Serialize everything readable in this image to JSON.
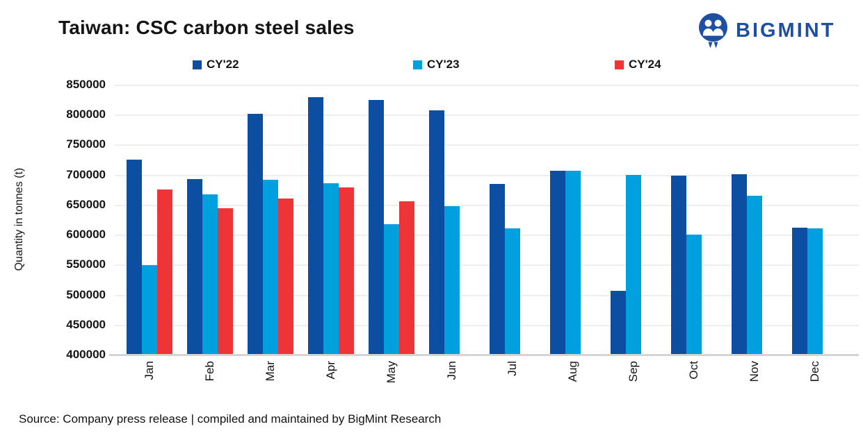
{
  "header": {
    "title": "Taiwan: CSC carbon steel sales",
    "logo_text": "BIGMINT"
  },
  "colors": {
    "cy22": "#0b4ea2",
    "cy23": "#00a0de",
    "cy24": "#ee3436",
    "logo_blue": "#1d4fa3",
    "gridline": "#eeeeee",
    "axis_line": "#d4d4d4",
    "text": "#141414"
  },
  "chart_data": {
    "type": "bar",
    "title": "Taiwan: CSC carbon steel sales",
    "xlabel": "",
    "ylabel": "Quantity in tonnes (t)",
    "ylim": [
      400000,
      850000
    ],
    "yticks": [
      850000,
      800000,
      750000,
      700000,
      650000,
      600000,
      550000,
      500000,
      450000,
      400000
    ],
    "grid": "horizontal",
    "legend_position": "top",
    "categories": [
      "Jan",
      "Feb",
      "Mar",
      "Apr",
      "May",
      "Jun",
      "Jul",
      "Aug",
      "Sep",
      "Oct",
      "Nov",
      "Dec"
    ],
    "series": [
      {
        "name": "CY'22",
        "color": "#0b4ea2",
        "values": [
          725000,
          693000,
          801000,
          829000,
          825000,
          807000,
          685000,
          707000,
          506000,
          699000,
          701000,
          612000
        ]
      },
      {
        "name": "CY'23",
        "color": "#00a0de",
        "values": [
          549000,
          667000,
          691000,
          686000,
          617000,
          648000,
          611000,
          706000,
          700000,
          600000,
          665000,
          610000
        ]
      },
      {
        "name": "CY'24",
        "color": "#ee3436",
        "values": [
          675000,
          644000,
          660000,
          679000,
          656000,
          null,
          null,
          null,
          null,
          null,
          null,
          null
        ]
      }
    ]
  },
  "footer": {
    "source": "Source: Company press release | compiled and maintained by BigMint Research"
  }
}
